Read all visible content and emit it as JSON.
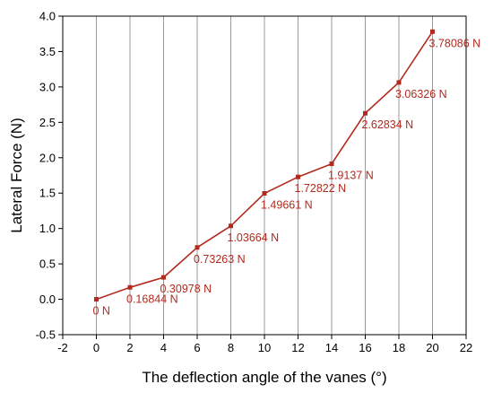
{
  "chart_data": {
    "type": "line",
    "title": "",
    "xlabel": "The deflection angle of the vanes (°)",
    "ylabel": "Lateral Force (N)",
    "xlim": [
      -2,
      22
    ],
    "ylim": [
      -0.5,
      4.0
    ],
    "xticks": [
      -2,
      0,
      2,
      4,
      6,
      8,
      10,
      12,
      14,
      16,
      18,
      20,
      22
    ],
    "yticks": [
      -0.5,
      0.0,
      0.5,
      1.0,
      1.5,
      2.0,
      2.5,
      3.0,
      3.5,
      4.0
    ],
    "xtick_labels": [
      "-2",
      "0",
      "2",
      "4",
      "6",
      "8",
      "10",
      "12",
      "14",
      "16",
      "18",
      "20",
      "22"
    ],
    "ytick_labels": [
      "-0.5",
      "0.0",
      "0.5",
      "1.0",
      "1.5",
      "2.0",
      "2.5",
      "3.0",
      "3.5",
      "4.0"
    ],
    "grid": "vertical",
    "series": [
      {
        "color": "#b22a1e",
        "x": [
          0,
          2,
          4,
          6,
          8,
          10,
          12,
          14,
          16,
          18,
          20
        ],
        "y": [
          0,
          0.16844,
          0.30978,
          0.73263,
          1.03664,
          1.49661,
          1.72822,
          1.9137,
          2.62834,
          3.06326,
          3.78086
        ],
        "labels": [
          "0 N",
          "0.16844 N",
          "0.30978 N",
          "0.73263 N",
          "1.03664 N",
          "1.49661 N",
          "1.72822 N",
          "1.9137 N",
          "2.62834 N",
          "3.06326 N",
          "3.78086 N"
        ]
      }
    ]
  }
}
